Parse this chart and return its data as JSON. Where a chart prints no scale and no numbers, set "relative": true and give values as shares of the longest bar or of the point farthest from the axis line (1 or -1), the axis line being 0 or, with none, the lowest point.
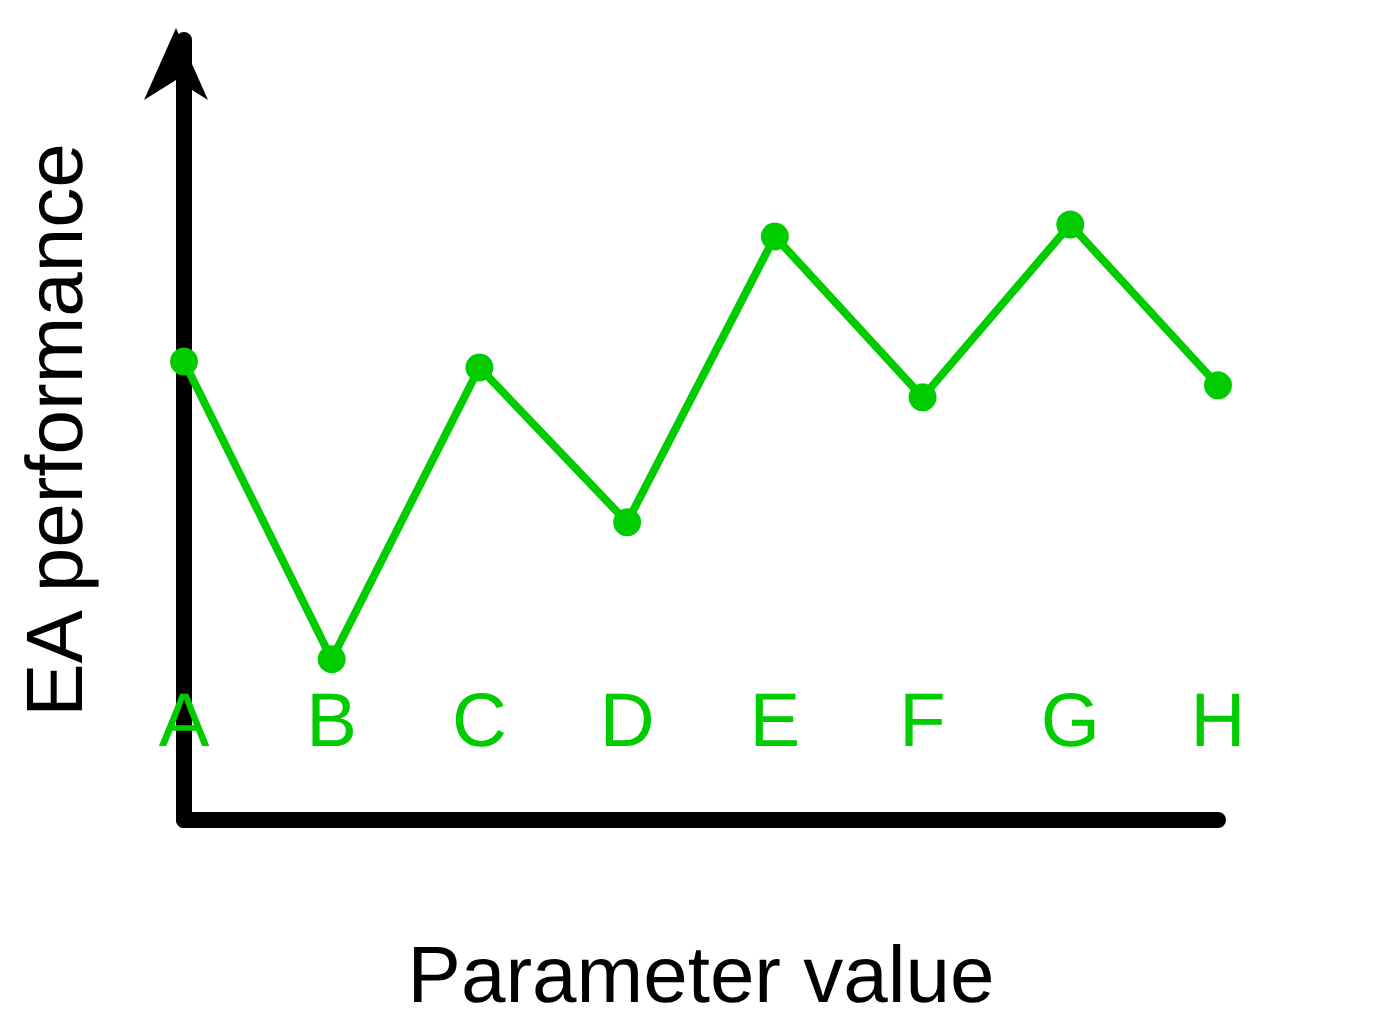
{
  "chart_data": {
    "type": "line",
    "relative": true,
    "xlabel": "Parameter value",
    "ylabel": "EA performance",
    "categories": [
      "A",
      "B",
      "C",
      "D",
      "E",
      "F",
      "G",
      "H"
    ],
    "series": [
      {
        "color": "#00cc00",
        "values": [
          0.77,
          0.27,
          0.76,
          0.5,
          0.98,
          0.71,
          1,
          0.73
        ]
      }
    ],
    "marker": "circle",
    "line_style": "solid",
    "grid": false
  }
}
